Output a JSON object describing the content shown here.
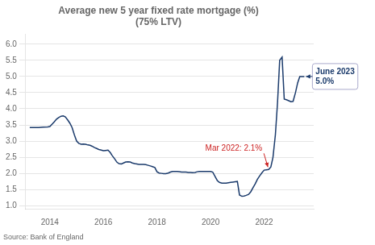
{
  "chart_data": {
    "type": "line",
    "title": "Average new 5 year fixed rate mortgage (%)",
    "subtitle": "(75% LTV)",
    "source": "Source: Bank of England",
    "color": "#1a3a6b",
    "grid": "y",
    "xlim": [
      2013.1,
      2023.85
    ],
    "xticks": [
      2014,
      2016,
      2018,
      2020,
      2022
    ],
    "ylim": [
      0.9,
      6.3
    ],
    "yticks": [
      {
        "value": 1,
        "label": "1.0"
      },
      1.5,
      {
        "value": 2,
        "label": "2.0"
      },
      2.5,
      {
        "value": 3,
        "label": "3.0"
      },
      3.5,
      {
        "value": 4,
        "label": "4.0"
      },
      4.5,
      {
        "value": 5,
        "label": "5.0"
      },
      5.5,
      {
        "value": 6,
        "label": "6.0"
      }
    ],
    "annotations": [
      {
        "text": "Mar 2022: 2.1%",
        "x": 2022.17,
        "y": 2.12,
        "color": "#cc2222"
      },
      {
        "text": "June 2023\n5.0%",
        "x": 2023.5,
        "y": 5.0,
        "color": "#1a3a6b"
      }
    ],
    "x": [
      2013.25,
      2013.42,
      2013.58,
      2013.75,
      2013.92,
      2014.0,
      2014.08,
      2014.17,
      2014.25,
      2014.33,
      2014.42,
      2014.5,
      2014.58,
      2014.67,
      2014.75,
      2014.83,
      2014.92,
      2015.0,
      2015.08,
      2015.17,
      2015.25,
      2015.33,
      2015.42,
      2015.5,
      2015.58,
      2015.67,
      2015.75,
      2015.83,
      2015.92,
      2016.0,
      2016.08,
      2016.17,
      2016.25,
      2016.33,
      2016.42,
      2016.5,
      2016.58,
      2016.67,
      2016.75,
      2016.83,
      2016.92,
      2017.0,
      2017.08,
      2017.17,
      2017.25,
      2017.33,
      2017.42,
      2017.5,
      2017.58,
      2017.67,
      2017.75,
      2017.83,
      2017.92,
      2018.0,
      2018.08,
      2018.17,
      2018.25,
      2018.33,
      2018.42,
      2018.5,
      2018.58,
      2018.67,
      2018.75,
      2018.83,
      2018.92,
      2019.0,
      2019.08,
      2019.17,
      2019.25,
      2019.33,
      2019.42,
      2019.5,
      2019.58,
      2019.67,
      2019.75,
      2019.83,
      2019.92,
      2020.0,
      2020.08,
      2020.17,
      2020.25,
      2020.33,
      2020.42,
      2020.5,
      2020.58,
      2020.67,
      2020.75,
      2020.83,
      2020.92,
      2021.0,
      2021.08,
      2021.17,
      2021.25,
      2021.33,
      2021.42,
      2021.5,
      2021.58,
      2021.67,
      2021.75,
      2021.83,
      2021.92,
      2022.0,
      2022.08,
      2022.17,
      2022.25,
      2022.33,
      2022.42,
      2022.5,
      2022.58,
      2022.67,
      2022.75,
      2022.83,
      2022.92,
      2023.0,
      2023.08,
      2023.17,
      2023.25,
      2023.33,
      2023.42,
      2023.5
    ],
    "values": [
      3.42,
      3.42,
      3.42,
      3.43,
      3.44,
      3.45,
      3.52,
      3.6,
      3.68,
      3.73,
      3.77,
      3.78,
      3.75,
      3.65,
      3.55,
      3.42,
      3.18,
      3.0,
      2.93,
      2.9,
      2.91,
      2.9,
      2.88,
      2.87,
      2.84,
      2.8,
      2.77,
      2.74,
      2.72,
      2.7,
      2.71,
      2.72,
      2.65,
      2.55,
      2.45,
      2.35,
      2.3,
      2.29,
      2.32,
      2.35,
      2.36,
      2.35,
      2.32,
      2.3,
      2.29,
      2.28,
      2.28,
      2.28,
      2.27,
      2.25,
      2.23,
      2.21,
      2.18,
      2.05,
      2.01,
      2.0,
      1.99,
      1.99,
      2.01,
      2.04,
      2.06,
      2.06,
      2.06,
      2.05,
      2.04,
      2.04,
      2.04,
      2.03,
      2.03,
      2.02,
      2.03,
      2.05,
      2.06,
      2.06,
      2.06,
      2.06,
      2.06,
      2.06,
      2.04,
      1.9,
      1.78,
      1.72,
      1.7,
      1.7,
      1.7,
      1.71,
      1.72,
      1.73,
      1.74,
      1.75,
      1.33,
      1.29,
      1.3,
      1.32,
      1.35,
      1.43,
      1.55,
      1.68,
      1.82,
      1.92,
      2.02,
      2.1,
      2.11,
      2.12,
      2.2,
      2.5,
      3.2,
      4.2,
      5.5,
      5.6,
      4.3,
      4.28,
      4.25,
      4.22,
      4.23,
      4.5,
      4.8,
      5.0,
      5.0,
      5.0
    ]
  }
}
